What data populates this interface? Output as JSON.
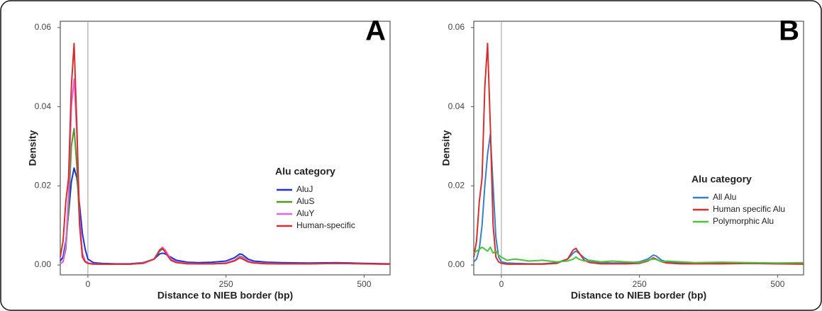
{
  "chart_data": [
    {
      "type": "line",
      "panel_label": "A",
      "xlabel": "Distance to NIEB border (bp)",
      "ylabel": "Density",
      "legend_title": "Alu category",
      "x": [
        -50,
        -45,
        -40,
        -35,
        -30,
        -25,
        -20,
        -15,
        -10,
        -5,
        0,
        10,
        25,
        50,
        75,
        100,
        120,
        130,
        135,
        140,
        150,
        160,
        180,
        200,
        225,
        250,
        265,
        275,
        280,
        290,
        300,
        325,
        350,
        400,
        450,
        500,
        547
      ],
      "xlim": [
        -50,
        547
      ],
      "ylim": [
        -0.0025,
        0.0616
      ],
      "xticks": [
        0,
        250,
        500
      ],
      "yticks": [
        {
          "value": 0,
          "label": "0.00"
        },
        {
          "value": 0.02,
          "label": "0.02"
        },
        {
          "value": 0.04,
          "label": "0.04"
        },
        {
          "value": 0.06,
          "label": "0.06"
        }
      ],
      "series": [
        {
          "name": "AluJ",
          "color": "#1f2fd6",
          "values": [
            0.001,
            0.002,
            0.006,
            0.013,
            0.021,
            0.0245,
            0.022,
            0.015,
            0.008,
            0.004,
            0.0015,
            0.0006,
            0.0004,
            0.0003,
            0.0003,
            0.0006,
            0.0015,
            0.0028,
            0.003,
            0.0028,
            0.002,
            0.0012,
            0.0007,
            0.0006,
            0.0007,
            0.001,
            0.0018,
            0.0028,
            0.0026,
            0.0015,
            0.001,
            0.0007,
            0.0006,
            0.0005,
            0.0006,
            0.0004,
            0.0003
          ]
        },
        {
          "name": "AluS",
          "color": "#4e9a1e",
          "values": [
            0.0003,
            0.0008,
            0.004,
            0.014,
            0.03,
            0.0345,
            0.025,
            0.01,
            0.003,
            0.001,
            0.0005,
            0.0003,
            0.0002,
            0.0002,
            0.0002,
            0.0005,
            0.0015,
            0.0035,
            0.004,
            0.0035,
            0.0015,
            0.0008,
            0.0004,
            0.0003,
            0.0003,
            0.0005,
            0.0012,
            0.0022,
            0.002,
            0.001,
            0.0006,
            0.0004,
            0.0003,
            0.0003,
            0.0004,
            0.0003,
            0.0002
          ]
        },
        {
          "name": "AluY",
          "color": "#e463e8",
          "values": [
            0.0003,
            0.0008,
            0.005,
            0.018,
            0.04,
            0.047,
            0.033,
            0.012,
            0.003,
            0.001,
            0.0005,
            0.0003,
            0.0002,
            0.0002,
            0.0002,
            0.0005,
            0.0015,
            0.0038,
            0.0045,
            0.0038,
            0.0015,
            0.0008,
            0.0004,
            0.0003,
            0.0003,
            0.0005,
            0.0012,
            0.002,
            0.0018,
            0.001,
            0.0006,
            0.0004,
            0.0003,
            0.0003,
            0.0004,
            0.0003,
            0.0002
          ]
        },
        {
          "name": "Human-specific",
          "color": "#d62e2e",
          "values": [
            0.002,
            0.006,
            0.016,
            0.022,
            0.045,
            0.056,
            0.035,
            0.01,
            0.002,
            0.0008,
            0.0004,
            0.0002,
            0.0002,
            0.0002,
            0.0002,
            0.0004,
            0.0015,
            0.0038,
            0.0042,
            0.0032,
            0.0012,
            0.0006,
            0.0003,
            0.0003,
            0.0003,
            0.0004,
            0.001,
            0.0018,
            0.0015,
            0.0008,
            0.0005,
            0.0003,
            0.0003,
            0.0003,
            0.0004,
            0.0003,
            0.0002
          ]
        }
      ]
    },
    {
      "type": "line",
      "panel_label": "B",
      "xlabel": "Distance to NIEB border (bp)",
      "ylabel": "Density",
      "legend_title": "Alu category",
      "x": [
        -50,
        -45,
        -40,
        -35,
        -30,
        -25,
        -20,
        -15,
        -10,
        -5,
        0,
        10,
        25,
        50,
        75,
        100,
        120,
        130,
        135,
        140,
        150,
        160,
        180,
        200,
        225,
        250,
        265,
        275,
        280,
        290,
        300,
        325,
        350,
        400,
        450,
        500,
        547
      ],
      "xlim": [
        -50,
        547
      ],
      "ylim": [
        -0.0025,
        0.0616
      ],
      "xticks": [
        0,
        250,
        500
      ],
      "yticks": [
        {
          "value": 0,
          "label": "0.00"
        },
        {
          "value": 0.02,
          "label": "0.02"
        },
        {
          "value": 0.04,
          "label": "0.04"
        },
        {
          "value": 0.06,
          "label": "0.06"
        }
      ],
      "series": [
        {
          "name": "All Alu",
          "color": "#3a7fc1",
          "values": [
            0.0008,
            0.0015,
            0.004,
            0.01,
            0.02,
            0.028,
            0.033,
            0.02,
            0.007,
            0.002,
            0.0008,
            0.0005,
            0.0004,
            0.0003,
            0.0003,
            0.0006,
            0.0015,
            0.003,
            0.0035,
            0.003,
            0.0018,
            0.001,
            0.0006,
            0.0005,
            0.0005,
            0.0008,
            0.0015,
            0.0025,
            0.0023,
            0.0012,
            0.0008,
            0.0005,
            0.0004,
            0.0004,
            0.0004,
            0.0003,
            0.0003
          ]
        },
        {
          "name": "Human specific Alu",
          "color": "#d62e2e",
          "values": [
            0.002,
            0.006,
            0.016,
            0.022,
            0.045,
            0.056,
            0.035,
            0.01,
            0.002,
            0.0008,
            0.0004,
            0.0002,
            0.0002,
            0.0002,
            0.0002,
            0.0004,
            0.0015,
            0.0038,
            0.0042,
            0.0032,
            0.0012,
            0.0006,
            0.0003,
            0.0003,
            0.0003,
            0.0004,
            0.001,
            0.0018,
            0.0015,
            0.0008,
            0.0005,
            0.0003,
            0.0003,
            0.0003,
            0.0004,
            0.0003,
            0.0002
          ]
        },
        {
          "name": "Polymorphic Alu",
          "color": "#4cc23a",
          "values": [
            0.003,
            0.0035,
            0.004,
            0.0045,
            0.004,
            0.0035,
            0.0045,
            0.003,
            0.0035,
            0.0025,
            0.002,
            0.0012,
            0.0015,
            0.001,
            0.0012,
            0.0008,
            0.001,
            0.0015,
            0.002,
            0.0015,
            0.001,
            0.0012,
            0.0008,
            0.001,
            0.0008,
            0.0006,
            0.0012,
            0.0015,
            0.0014,
            0.0008,
            0.001,
            0.0008,
            0.0006,
            0.0007,
            0.0006,
            0.0005,
            0.0006
          ]
        }
      ]
    }
  ]
}
